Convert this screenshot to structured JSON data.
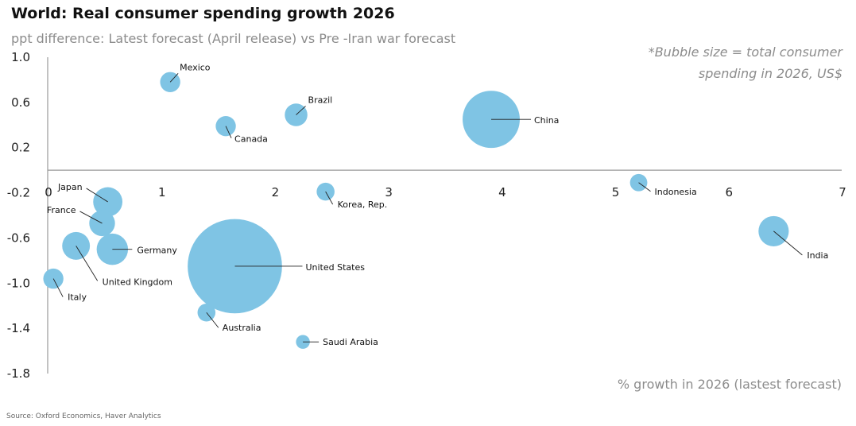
{
  "chart_data": {
    "type": "scatter",
    "title": "World: Real consumer spending growth 2026",
    "subtitle": "ppt difference: Latest forecast (April release) vs Pre -Iran war forecast",
    "note_lines": [
      "*Bubble size = total consumer",
      "spending in 2026, US$"
    ],
    "xlabel": "% growth in 2026 (lastest forecast)",
    "ylabel": "",
    "xlim": [
      0,
      7
    ],
    "ylim": [
      -1.8,
      1.0
    ],
    "x_ticks": [
      "0",
      "1",
      "2",
      "3",
      "4",
      "5",
      "6",
      "7"
    ],
    "y_ticks": [
      "1.0",
      "0.6",
      "0.2",
      "-0.2",
      "-0.6",
      "-1.0",
      "-1.4",
      "-1.8"
    ],
    "y_tick_values": [
      1.0,
      0.6,
      0.2,
      -0.2,
      -0.6,
      -1.0,
      -1.4,
      -1.8
    ],
    "bubble_color": "#7fc4e4",
    "source": "Source: Oxford Economics, Haver Analytics",
    "points": [
      {
        "name": "Mexico",
        "x": 1.08,
        "y": 0.78,
        "size": 1.9
      },
      {
        "name": "Brazil",
        "x": 2.19,
        "y": 0.49,
        "size": 2.4
      },
      {
        "name": "Canada",
        "x": 1.57,
        "y": 0.39,
        "size": 1.9
      },
      {
        "name": "China",
        "x": 3.91,
        "y": 0.45,
        "size": 15.3
      },
      {
        "name": "Indonesia",
        "x": 5.21,
        "y": -0.11,
        "size": 1.4
      },
      {
        "name": "Korea, Rep.",
        "x": 2.45,
        "y": -0.19,
        "size": 1.5
      },
      {
        "name": "Japan",
        "x": 0.53,
        "y": -0.28,
        "size": 4.0
      },
      {
        "name": "France",
        "x": 0.48,
        "y": -0.47,
        "size": 3.1
      },
      {
        "name": "Germany",
        "x": 0.57,
        "y": -0.7,
        "size": 4.6
      },
      {
        "name": "United Kingdom",
        "x": 0.25,
        "y": -0.67,
        "size": 3.6
      },
      {
        "name": "India",
        "x": 6.4,
        "y": -0.54,
        "size": 4.3
      },
      {
        "name": "United States",
        "x": 1.65,
        "y": -0.85,
        "size": 41.6
      },
      {
        "name": "Italy",
        "x": 0.05,
        "y": -0.96,
        "size": 1.9
      },
      {
        "name": "Australia",
        "x": 1.4,
        "y": -1.26,
        "size": 1.5
      },
      {
        "name": "Saudi Arabia",
        "x": 2.25,
        "y": -1.52,
        "size": 0.9
      }
    ]
  }
}
